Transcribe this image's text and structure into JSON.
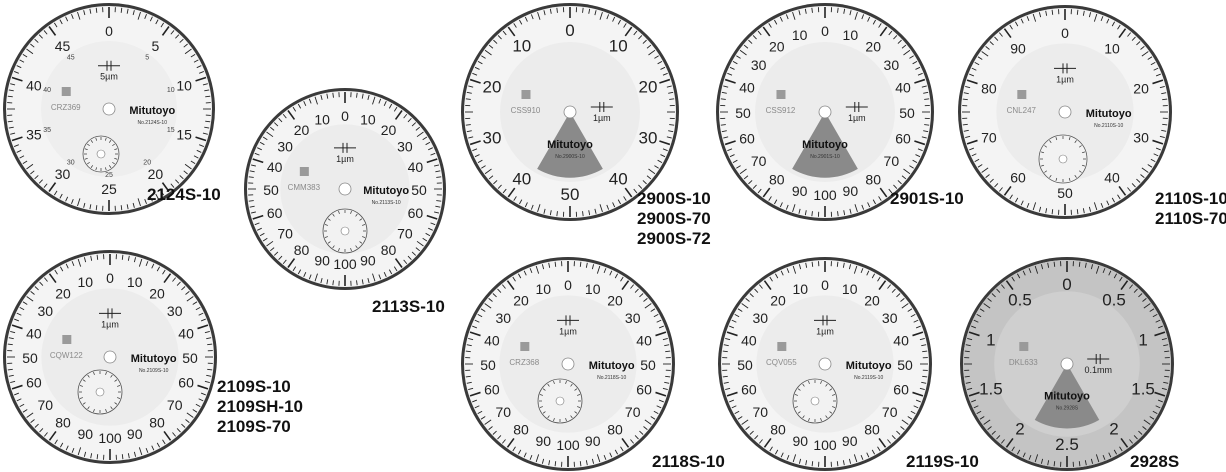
{
  "dials": [
    {
      "id": "d2124",
      "scale_labels": [
        "0",
        "5",
        "10",
        "15",
        "20",
        "25",
        "30",
        "35",
        "40",
        "45"
      ],
      "small_labels": [
        "5",
        "10",
        "15",
        "20",
        "25",
        "30",
        "35",
        "40",
        "45"
      ],
      "resolution": "5µm",
      "serial": "CRZ369",
      "brand": "Mitutoyo",
      "model_no": "No.2124S-10",
      "pointer_cap": "",
      "captions": [
        "2124S-10"
      ],
      "face": "#eeeeee"
    },
    {
      "id": "d2113",
      "scale_labels": [
        "0",
        "10",
        "20",
        "30",
        "40",
        "50",
        "60",
        "70",
        "80",
        "90",
        "100",
        "90",
        "80",
        "70",
        "60",
        "50",
        "40",
        "30",
        "20",
        "10"
      ],
      "resolution": "1µm",
      "serial": "CMM383",
      "brand": "Mitutoyo",
      "model_no": "No.2113S-10",
      "captions": [
        "2113S-10"
      ],
      "face": "#ececec"
    },
    {
      "id": "d2900",
      "scale_labels": [
        "0",
        "10",
        "20",
        "30",
        "40",
        "50",
        "40",
        "30",
        "20",
        "10"
      ],
      "resolution": "1µm",
      "serial": "CSS910",
      "brand": "Mitutoyo",
      "model_no": "No.2900S-10",
      "captions": [
        "2900S-10",
        "2900S-70",
        "2900S-72"
      ],
      "face": "#ececec"
    },
    {
      "id": "d2901",
      "scale_labels": [
        "0",
        "10",
        "20",
        "30",
        "40",
        "50",
        "60",
        "70",
        "80",
        "90",
        "100",
        "90",
        "80",
        "70",
        "60",
        "50",
        "40",
        "30",
        "20",
        "10"
      ],
      "resolution": "1µm",
      "serial": "CSS912",
      "brand": "Mitutoyo",
      "model_no": "No.2901S-10",
      "captions": [
        "2901S-10"
      ],
      "face": "#ececec"
    },
    {
      "id": "d2110",
      "scale_labels": [
        "0",
        "10",
        "20",
        "30",
        "40",
        "50",
        "60",
        "70",
        "80",
        "90"
      ],
      "resolution": "1µm",
      "serial": "CNL247",
      "brand": "Mitutoyo",
      "model_no": "No.2110S-10",
      "captions": [
        "2110S-10",
        "2110S-70"
      ],
      "face": "#ececec"
    },
    {
      "id": "d2109",
      "scale_labels": [
        "0",
        "10",
        "20",
        "30",
        "40",
        "50",
        "60",
        "70",
        "80",
        "90",
        "100",
        "90",
        "80",
        "70",
        "60",
        "50",
        "40",
        "30",
        "20",
        "10"
      ],
      "resolution": "1µm",
      "serial": "CQW122",
      "brand": "Mitutoyo",
      "model_no": "No.2109S-10",
      "captions": [
        "2109S-10",
        "2109SH-10",
        "2109S-70"
      ],
      "face": "#ececec"
    },
    {
      "id": "d2118",
      "scale_labels": [
        "0",
        "10",
        "20",
        "30",
        "40",
        "50",
        "60",
        "70",
        "80",
        "90",
        "100",
        "90",
        "80",
        "70",
        "60",
        "50",
        "40",
        "30",
        "20",
        "10"
      ],
      "resolution": "1µm",
      "serial": "CRZ368",
      "brand": "Mitutoyo",
      "model_no": "No.2118S-10",
      "captions": [
        "2118S-10"
      ],
      "face": "#ececec"
    },
    {
      "id": "d2119",
      "scale_labels": [
        "0",
        "10",
        "20",
        "30",
        "40",
        "50",
        "60",
        "70",
        "80",
        "90",
        "100",
        "90",
        "80",
        "70",
        "60",
        "50",
        "40",
        "30",
        "20",
        "10"
      ],
      "resolution": "1µm",
      "serial": "CQV055",
      "brand": "Mitutoyo",
      "model_no": "No.2119S-10",
      "captions": [
        "2119S-10"
      ],
      "face": "#ececec"
    },
    {
      "id": "d2928",
      "scale_labels": [
        "0",
        "0.5",
        "1",
        "1.5",
        "2",
        "2.5",
        "2",
        "1.5",
        "1",
        "0.5"
      ],
      "resolution": "0.1mm",
      "serial": "DKL633",
      "brand": "Mitutoyo",
      "model_no": "No.2928S",
      "captions": [
        "2928S"
      ],
      "face": "#c9c9c9"
    }
  ],
  "colors": {
    "bezel": "#2f2f2f",
    "face_light": "#ededed",
    "wedge": "#8c8c8c",
    "text": "#222222"
  }
}
